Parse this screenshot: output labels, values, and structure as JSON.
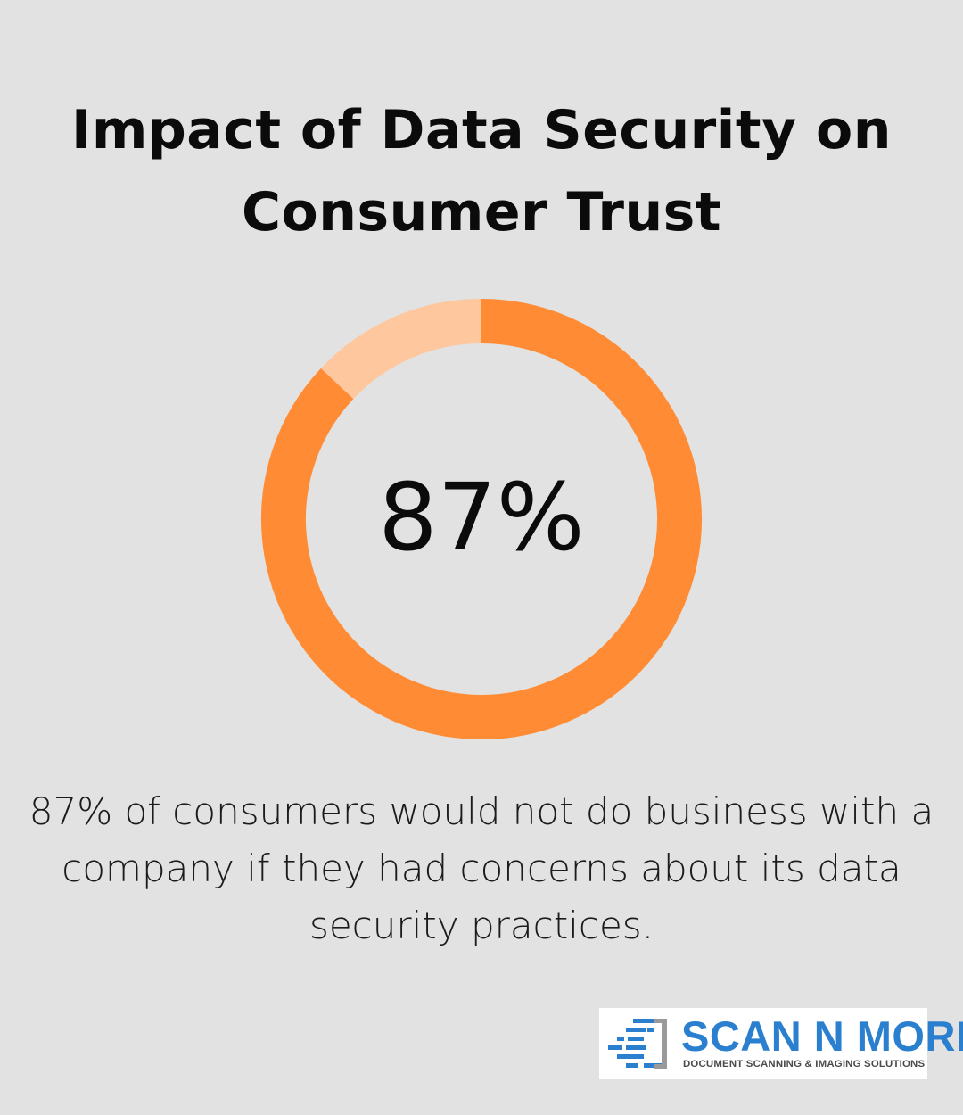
{
  "title": "Impact of Data Security on Consumer Trust",
  "chart_data": {
    "type": "pie",
    "style": "donut",
    "center_label": "87%",
    "slices": [
      {
        "value": 87,
        "color": "#ff8c35"
      },
      {
        "value": 13,
        "color": "#ffc79d"
      }
    ]
  },
  "caption": "87% of consumers would not do business with a company if they had concerns about its data security practices.",
  "logo": {
    "title": "SCAN N MORE",
    "subtitle": "DOCUMENT SCANNING & IMAGING SOLUTIONS"
  },
  "colors": {
    "background": "#e1e2e1",
    "accent": "#ff8c35",
    "accent_light": "#ffc79d",
    "logo_blue": "#2a80cf"
  }
}
